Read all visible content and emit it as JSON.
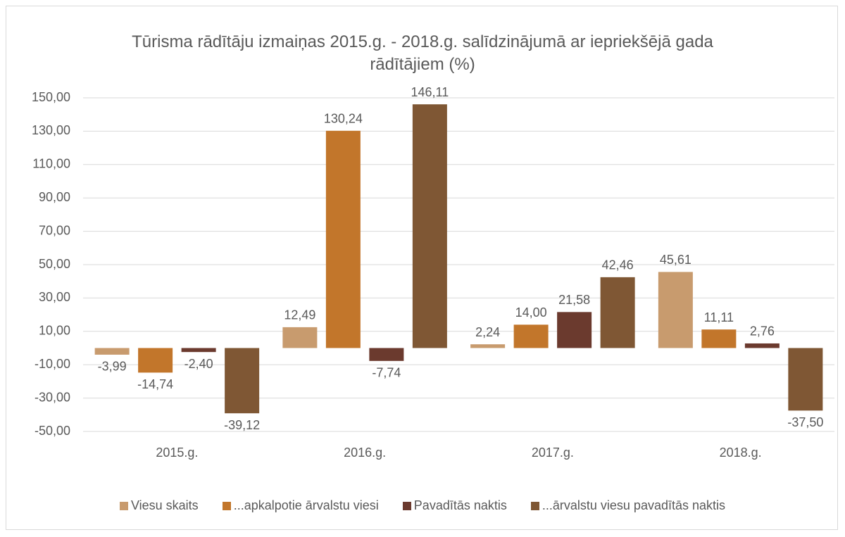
{
  "chart_data": {
    "type": "bar",
    "title": "Tūrisma rādītāju izmaiņas 2015.g. - 2018.g. salīdzinājumā ar iepriekšējā gada rādītājiem (%)",
    "categories": [
      "2015.g.",
      "2016.g.",
      "2017.g.",
      "2018.g."
    ],
    "series": [
      {
        "name": "Viesu skaits",
        "color": "#c89b6e",
        "values": [
          -3.99,
          12.49,
          2.24,
          45.61
        ],
        "value_labels": [
          "-3,99",
          "12,49",
          "2,24",
          "45,61"
        ]
      },
      {
        "name": "...apkalpotie ārvalstu viesi",
        "color": "#c2762b",
        "values": [
          -14.74,
          130.24,
          14.0,
          11.11
        ],
        "value_labels": [
          "-14,74",
          "130,24",
          "14,00",
          "11,11"
        ]
      },
      {
        "name": "Pavadītās naktis",
        "color": "#6b3a2e",
        "values": [
          -2.4,
          -7.74,
          21.58,
          2.76
        ],
        "value_labels": [
          "-2,40",
          "-7,74",
          "21,58",
          "2,76"
        ]
      },
      {
        "name": "...ārvalstu viesu pavadītās naktis",
        "color": "#7f5734",
        "values": [
          -39.12,
          146.11,
          42.46,
          -37.5
        ],
        "value_labels": [
          "-39,12",
          "146,11",
          "42,46",
          "-37,50"
        ]
      }
    ],
    "ylim": [
      -50,
      150
    ],
    "yticks": [
      {
        "value": -50,
        "label": "-50,00"
      },
      {
        "value": -30,
        "label": "-30,00"
      },
      {
        "value": -10,
        "label": "-10,00"
      },
      {
        "value": 10,
        "label": "10,00"
      },
      {
        "value": 30,
        "label": "30,00"
      },
      {
        "value": 50,
        "label": "50,00"
      },
      {
        "value": 70,
        "label": "70,00"
      },
      {
        "value": 90,
        "label": "90,00"
      },
      {
        "value": 110,
        "label": "110,00"
      },
      {
        "value": 130,
        "label": "130,00"
      },
      {
        "value": 150,
        "label": "150,00"
      }
    ],
    "grid": true,
    "legend": "bottom"
  }
}
